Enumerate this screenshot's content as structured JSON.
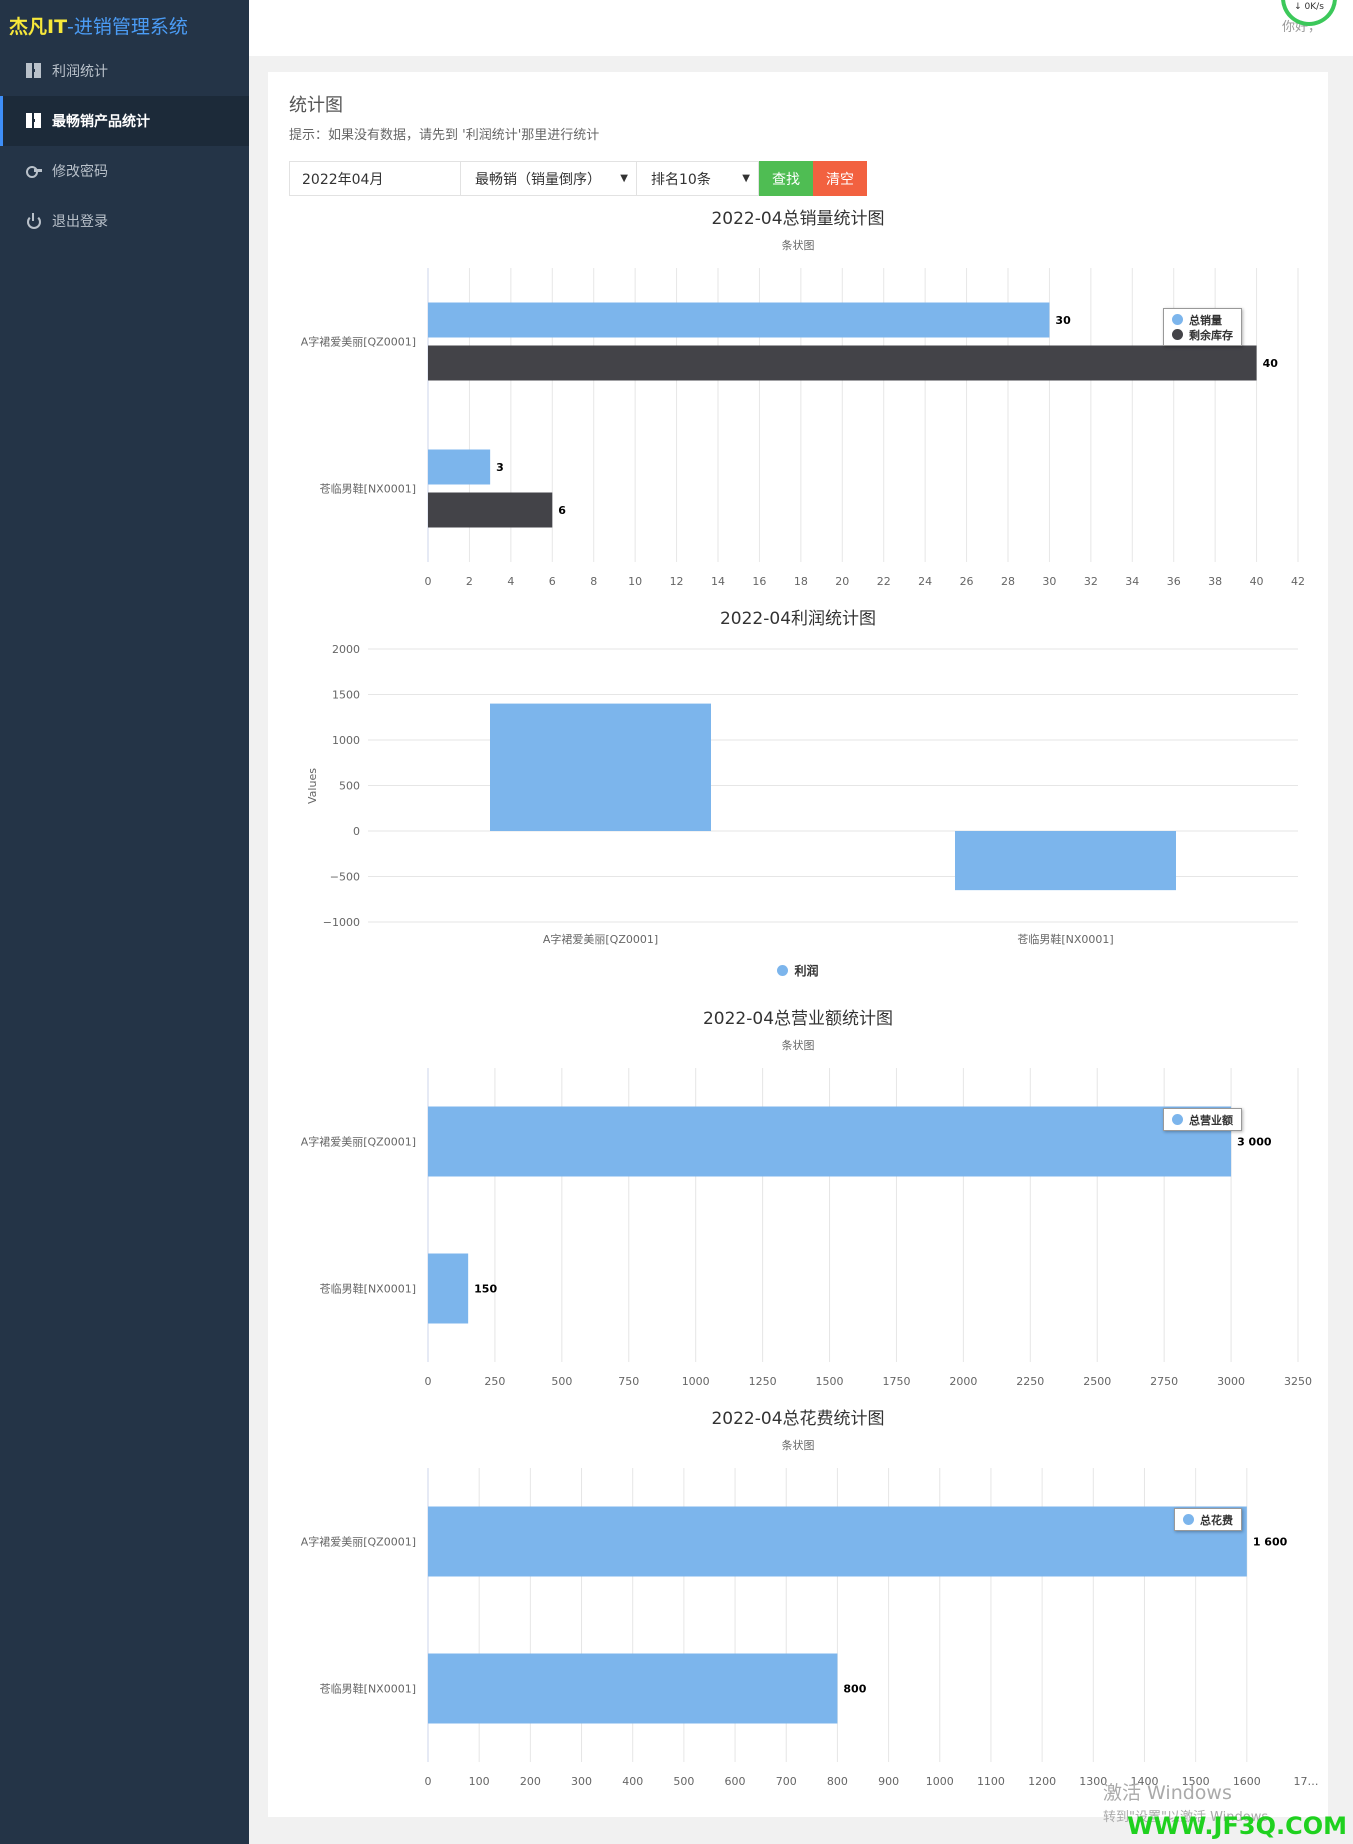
{
  "brand": {
    "part1": "杰凡IT",
    "part2": "-进销管理系统"
  },
  "sidebar": {
    "items": [
      {
        "label": "利润统计",
        "icon": "grid-icon",
        "active": false
      },
      {
        "label": "最畅销产品统计",
        "icon": "grid-icon",
        "active": true
      },
      {
        "label": "修改密码",
        "icon": "key-icon",
        "active": false
      },
      {
        "label": "退出登录",
        "icon": "power-icon",
        "active": false
      }
    ]
  },
  "header": {
    "greeting": "你好，",
    "net_speed": "0K/s"
  },
  "panel": {
    "title": "统计图",
    "hint": "提示：如果没有数据，请先到 '利润统计'那里进行统计"
  },
  "filters": {
    "month": "2022年04月",
    "sort_select": "最畅销（销量倒序）",
    "rank_select": "排名10条",
    "search_label": "查找",
    "clear_label": "清空"
  },
  "colors": {
    "blue": "#7cb5ec",
    "dark": "#434348",
    "green": "#4fbd53",
    "red": "#f26140",
    "sidebar": "#243447"
  },
  "chart_data": [
    {
      "type": "bar",
      "orientation": "horizontal",
      "title": "2022-04总销量统计图",
      "subtitle": "条状图",
      "categories": [
        "A字裙爱美丽[QZ0001]",
        "苍临男鞋[NX0001]"
      ],
      "series": [
        {
          "name": "总销量",
          "values": [
            30,
            3
          ],
          "color": "#7cb5ec"
        },
        {
          "name": "剩余库存",
          "values": [
            40,
            6
          ],
          "color": "#434348"
        }
      ],
      "xlim": [
        0,
        42
      ],
      "ticks": [
        0,
        2,
        4,
        6,
        8,
        10,
        12,
        14,
        16,
        18,
        20,
        22,
        24,
        26,
        28,
        30,
        32,
        34,
        36,
        38,
        40,
        42
      ],
      "data_labels": [
        "30",
        "3",
        "40",
        "6"
      ],
      "legend": "top-right",
      "grid": true
    },
    {
      "type": "bar",
      "orientation": "vertical",
      "title": "2022-04利润统计图",
      "ylabel": "Values",
      "categories": [
        "A字裙爱美丽[QZ0001]",
        "苍临男鞋[NX0001]"
      ],
      "series": [
        {
          "name": "利润",
          "values": [
            1400,
            -650
          ],
          "color": "#7cb5ec"
        }
      ],
      "ylim": [
        -1000,
        2000
      ],
      "ticks": [
        2000,
        1500,
        1000,
        500,
        0,
        -500,
        -1000
      ],
      "tick_labels": [
        "2000",
        "1500",
        "1000",
        "500",
        "0",
        "−500",
        "−1000"
      ],
      "legend": "bottom",
      "grid": true
    },
    {
      "type": "bar",
      "orientation": "horizontal",
      "title": "2022-04总营业额统计图",
      "subtitle": "条状图",
      "categories": [
        "A字裙爱美丽[QZ0001]",
        "苍临男鞋[NX0001]"
      ],
      "series": [
        {
          "name": "总营业额",
          "values": [
            3000,
            150
          ],
          "color": "#7cb5ec"
        }
      ],
      "xlim": [
        0,
        3250
      ],
      "ticks": [
        0,
        250,
        500,
        750,
        1000,
        1250,
        1500,
        1750,
        2000,
        2250,
        2500,
        2750,
        3000,
        3250
      ],
      "data_labels": [
        "3 000",
        "150"
      ],
      "legend": "top-right",
      "grid": true
    },
    {
      "type": "bar",
      "orientation": "horizontal",
      "title": "2022-04总花费统计图",
      "subtitle": "条状图",
      "categories": [
        "A字裙爱美丽[QZ0001]",
        "苍临男鞋[NX0001]"
      ],
      "series": [
        {
          "name": "总花费",
          "values": [
            1600,
            800
          ],
          "color": "#7cb5ec"
        }
      ],
      "xlim": [
        0,
        1700
      ],
      "ticks": [
        0,
        100,
        200,
        300,
        400,
        500,
        600,
        700,
        800,
        900,
        1000,
        1100,
        1200,
        1300,
        1400,
        1500,
        1600
      ],
      "last_tick_label": "17…",
      "data_labels": [
        "1 600",
        "800"
      ],
      "legend": "top-right",
      "grid": true
    }
  ],
  "os_overlay": {
    "activate_title": "激活 Windows",
    "activate_sub": "转到\"设置\"以激活 Windows。",
    "site_mark": "WWW.JF3Q.COM"
  }
}
